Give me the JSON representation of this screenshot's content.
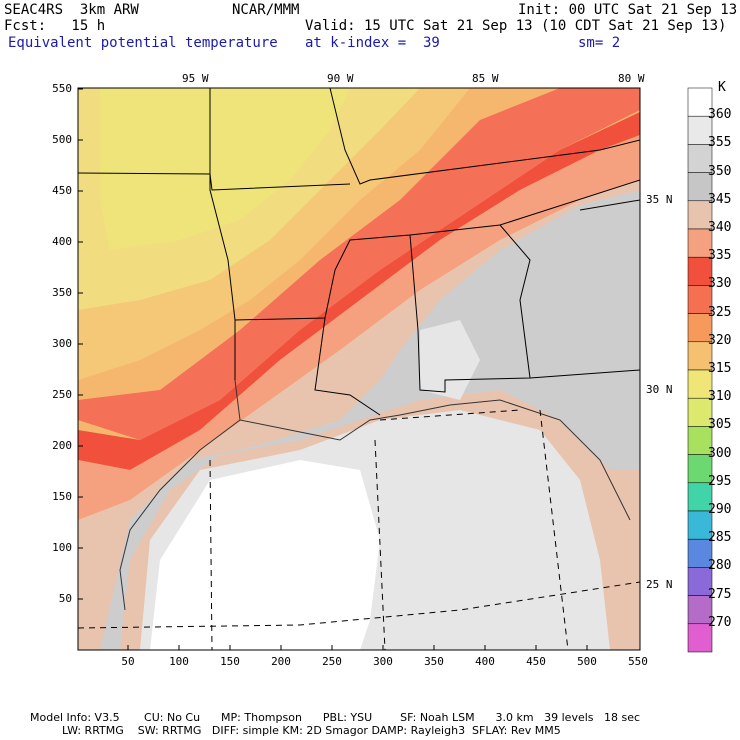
{
  "header": {
    "model": "SEAC4RS  3km ARW",
    "org": "NCAR/MMM",
    "init": "Init: 00 UTC Sat 21 Sep 13",
    "fcst": "Fcst:   15 h",
    "valid": "Valid: 15 UTC Sat 21 Sep 13 (10 CDT Sat 21 Sep 13)",
    "field": "Equivalent potential temperature",
    "level": "at k-index =  39",
    "smooth": "sm= 2"
  },
  "axes": {
    "x_ticks": [
      "50",
      "100",
      "150",
      "200",
      "250",
      "300",
      "350",
      "400",
      "450",
      "500",
      "550"
    ],
    "y_ticks": [
      "550",
      "500",
      "450",
      "400",
      "350",
      "300",
      "250",
      "200",
      "150",
      "100",
      "50"
    ],
    "lon_labels": [
      "95 W",
      "90 W",
      "85 W",
      "80 W"
    ],
    "lat_labels": [
      "35 N",
      "30 N",
      "25 N"
    ]
  },
  "colorbar": {
    "unit": "K",
    "levels": [
      "360",
      "355",
      "350",
      "345",
      "340",
      "335",
      "330",
      "325",
      "320",
      "315",
      "310",
      "305",
      "300",
      "295",
      "290",
      "285",
      "280",
      "275",
      "270"
    ],
    "colors": [
      "#ffffff",
      "#e9e9e9",
      "#d3d3d3",
      "#c6c6c6",
      "#e8c4ae",
      "#f5a07e",
      "#f0503c",
      "#f47050",
      "#f59a5a",
      "#f5c070",
      "#f0e678",
      "#dde86e",
      "#a8e060",
      "#6cd870",
      "#40d4a8",
      "#3ab8d8",
      "#5a88e0",
      "#8a6ad8",
      "#b46cc8",
      "#e05ed0"
    ]
  },
  "footer": {
    "line1": "Model Info: V3.5       CU: No Cu      MP: Thompson      PBL: YSU        SF: Noah LSM      3.0 km   39 levels   18 sec",
    "line2": "LW: RRTMG    SW: RRTMG   DIFF: simple KM: 2D Smagor DAMP: Rayleigh3  SFLAY: Rev MM5"
  }
}
